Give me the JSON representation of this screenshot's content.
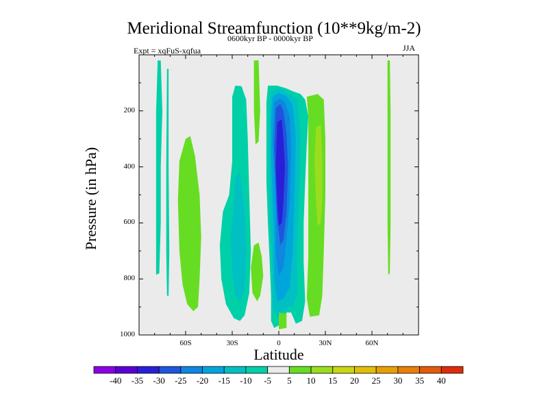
{
  "chart_data": {
    "type": "heatmap",
    "title": "Meridional Streamfunction (10**9kg/m-2)",
    "subtitle_left": "Expt = xqFuS-xqfua",
    "subtitle_center": "0600kyr BP - 0000kyr BP",
    "subtitle_right": "JJA",
    "xlabel": "Latitude",
    "ylabel": "Pressure (in hPa)",
    "xlim": [
      -90,
      90
    ],
    "ylim": [
      1000,
      0
    ],
    "x_ticks": [
      {
        "label": "60S",
        "value": -60
      },
      {
        "label": "30S",
        "value": -30
      },
      {
        "label": "0",
        "value": 0
      },
      {
        "label": "30N",
        "value": 30
      },
      {
        "label": "60N",
        "value": 60
      }
    ],
    "y_ticks": [
      {
        "label": "200",
        "value": 200
      },
      {
        "label": "400",
        "value": 400
      },
      {
        "label": "600",
        "value": 600
      },
      {
        "label": "800",
        "value": 800
      },
      {
        "label": "1000",
        "value": 1000
      }
    ],
    "colorbar": {
      "labels": [
        "-40",
        "-35",
        "-30",
        "-25",
        "-20",
        "-15",
        "-10",
        "-5",
        "5",
        "10",
        "15",
        "20",
        "25",
        "30",
        "35",
        "40"
      ],
      "colors": [
        "#8a00e6",
        "#5a00d6",
        "#2a1fd8",
        "#1f55dd",
        "#0f86e0",
        "#00a5dc",
        "#00c0c4",
        "#00d0a8",
        "#ebebeb",
        "#66dd22",
        "#9bdd1e",
        "#c8d614",
        "#e0be08",
        "#e89f06",
        "#e77e08",
        "#e35a08",
        "#dc2c0a"
      ]
    },
    "regions": [
      {
        "level": "-10",
        "color": "#00d0a8",
        "points": [
          [
            -78,
            20
          ],
          [
            -76,
            20
          ],
          [
            -75,
            200
          ],
          [
            -76,
            400
          ],
          [
            -76,
            600
          ],
          [
            -77,
            780
          ],
          [
            -79,
            785
          ],
          [
            -79,
            600
          ],
          [
            -79,
            400
          ],
          [
            -79,
            200
          ]
        ]
      },
      {
        "level": "-10",
        "color": "#00d0a8",
        "points": [
          [
            -72,
            50
          ],
          [
            -71,
            50
          ],
          [
            -71,
            400
          ],
          [
            -70.5,
            700
          ],
          [
            -71,
            860
          ],
          [
            -72,
            860
          ],
          [
            -72.5,
            700
          ],
          [
            -72.5,
            400
          ]
        ]
      },
      {
        "level": "5",
        "color": "#66dd22",
        "points": [
          [
            -60,
            300
          ],
          [
            -57,
            290
          ],
          [
            -54,
            360
          ],
          [
            -51,
            500
          ],
          [
            -50,
            650
          ],
          [
            -51,
            800
          ],
          [
            -52,
            900
          ],
          [
            -55,
            915
          ],
          [
            -59,
            890
          ],
          [
            -62,
            820
          ],
          [
            -64,
            700
          ],
          [
            -65,
            520
          ],
          [
            -64,
            380
          ]
        ]
      },
      {
        "level": "-10",
        "color": "#00d0a8",
        "points": [
          [
            -28,
            110
          ],
          [
            -24,
            112
          ],
          [
            -21,
            160
          ],
          [
            -20,
            300
          ],
          [
            -19,
            500
          ],
          [
            -18,
            700
          ],
          [
            -19,
            850
          ],
          [
            -22,
            930
          ],
          [
            -25,
            950
          ],
          [
            -29,
            940
          ],
          [
            -34,
            890
          ],
          [
            -37,
            800
          ],
          [
            -38,
            680
          ],
          [
            -36,
            560
          ],
          [
            -32,
            500
          ],
          [
            -30,
            380
          ],
          [
            -30,
            220
          ],
          [
            -30,
            150
          ]
        ]
      },
      {
        "level": "-15",
        "color": "#00c0c4",
        "points": [
          [
            -28,
            440
          ],
          [
            -25,
            420
          ],
          [
            -22,
            550
          ],
          [
            -21,
            700
          ],
          [
            -22,
            840
          ],
          [
            -25,
            880
          ],
          [
            -28,
            860
          ],
          [
            -30,
            770
          ],
          [
            -31,
            650
          ],
          [
            -29,
            540
          ]
        ]
      },
      {
        "level": "5",
        "color": "#66dd22",
        "points": [
          [
            -16,
            20
          ],
          [
            -13,
            20
          ],
          [
            -12,
            200
          ],
          [
            -13,
            310
          ],
          [
            -15,
            320
          ],
          [
            -16,
            200
          ]
        ]
      },
      {
        "level": "5",
        "color": "#66dd22",
        "points": [
          [
            -16,
            680
          ],
          [
            -13,
            670
          ],
          [
            -11,
            720
          ],
          [
            -10,
            790
          ],
          [
            -12,
            860
          ],
          [
            -14,
            880
          ],
          [
            -17,
            850
          ],
          [
            -18,
            760
          ]
        ]
      },
      {
        "level": "-10",
        "color": "#00d0a8",
        "points": [
          [
            -7,
            110
          ],
          [
            -1,
            110
          ],
          [
            5,
            120
          ],
          [
            9,
            130
          ],
          [
            14,
            140
          ],
          [
            17,
            160
          ],
          [
            19,
            220
          ],
          [
            18,
            320
          ],
          [
            17,
            450
          ],
          [
            16,
            600
          ],
          [
            16,
            740
          ],
          [
            17,
            880
          ],
          [
            15,
            950
          ],
          [
            11,
            960
          ],
          [
            8,
            920
          ],
          [
            5,
            920
          ],
          [
            2,
            960
          ],
          [
            -3,
            975
          ],
          [
            -5,
            950
          ],
          [
            -5,
            860
          ],
          [
            -6,
            720
          ],
          [
            -7,
            600
          ],
          [
            -8,
            450
          ],
          [
            -8,
            260
          ],
          [
            -8,
            170
          ]
        ]
      },
      {
        "level": "5",
        "color": "#66dd22",
        "points": [
          [
            18,
            150
          ],
          [
            25,
            140
          ],
          [
            29,
            160
          ],
          [
            30,
            300
          ],
          [
            30,
            500
          ],
          [
            29,
            700
          ],
          [
            28,
            860
          ],
          [
            26,
            930
          ],
          [
            20,
            935
          ],
          [
            18,
            870
          ],
          [
            19,
            720
          ],
          [
            19,
            540
          ],
          [
            19,
            360
          ],
          [
            19,
            220
          ]
        ]
      },
      {
        "level": "10",
        "color": "#9bdd1e",
        "points": [
          [
            24,
            260
          ],
          [
            27,
            250
          ],
          [
            28,
            370
          ],
          [
            28,
            520
          ],
          [
            27,
            600
          ],
          [
            25,
            610
          ],
          [
            24,
            520
          ],
          [
            23,
            380
          ]
        ]
      },
      {
        "level": "-15",
        "color": "#00c0c4",
        "points": [
          [
            -5,
            130
          ],
          [
            1,
            120
          ],
          [
            6,
            135
          ],
          [
            12,
            160
          ],
          [
            14,
            300
          ],
          [
            13,
            500
          ],
          [
            12,
            700
          ],
          [
            12,
            850
          ],
          [
            9,
            900
          ],
          [
            3,
            910
          ],
          [
            -1,
            940
          ],
          [
            -4,
            900
          ],
          [
            -4,
            780
          ],
          [
            -5,
            640
          ],
          [
            -6,
            500
          ],
          [
            -6,
            300
          ],
          [
            -6,
            190
          ]
        ]
      },
      {
        "level": "-20",
        "color": "#00a5dc",
        "points": [
          [
            -4,
            150
          ],
          [
            0,
            135
          ],
          [
            5,
            148
          ],
          [
            9,
            180
          ],
          [
            11,
            300
          ],
          [
            10,
            520
          ],
          [
            9,
            700
          ],
          [
            7,
            830
          ],
          [
            3,
            870
          ],
          [
            -1,
            880
          ],
          [
            -3,
            800
          ],
          [
            -3,
            660
          ],
          [
            -4,
            520
          ],
          [
            -5,
            360
          ],
          [
            -5,
            230
          ]
        ]
      },
      {
        "level": "-25",
        "color": "#0f86e0",
        "points": [
          [
            -3,
            170
          ],
          [
            1,
            155
          ],
          [
            4,
            170
          ],
          [
            7,
            220
          ],
          [
            8,
            350
          ],
          [
            7,
            520
          ],
          [
            5,
            660
          ],
          [
            3,
            760
          ],
          [
            0,
            790
          ],
          [
            -2,
            700
          ],
          [
            -2,
            560
          ],
          [
            -3,
            420
          ],
          [
            -4,
            300
          ]
        ]
      },
      {
        "level": "-30",
        "color": "#1f55dd",
        "points": [
          [
            -2,
            190
          ],
          [
            1,
            175
          ],
          [
            3,
            200
          ],
          [
            5,
            280
          ],
          [
            6,
            400
          ],
          [
            5,
            560
          ],
          [
            3,
            660
          ],
          [
            1,
            680
          ],
          [
            -1,
            590
          ],
          [
            -2,
            460
          ],
          [
            -3,
            330
          ]
        ]
      },
      {
        "level": "-35",
        "color": "#2a1fd8",
        "points": [
          [
            -1,
            240
          ],
          [
            2,
            230
          ],
          [
            3,
            300
          ],
          [
            4,
            400
          ],
          [
            3,
            520
          ],
          [
            2,
            600
          ],
          [
            0,
            610
          ],
          [
            -1,
            530
          ],
          [
            -2,
            400
          ]
        ]
      },
      {
        "level": "5",
        "color": "#66dd22",
        "points": [
          [
            0,
            920
          ],
          [
            5,
            925
          ],
          [
            5,
            975
          ],
          [
            0,
            980
          ]
        ]
      },
      {
        "level": "5",
        "color": "#66dd22",
        "points": [
          [
            70,
            20
          ],
          [
            71.5,
            20
          ],
          [
            72,
            200
          ],
          [
            72,
            400
          ],
          [
            72,
            600
          ],
          [
            71.5,
            780
          ],
          [
            70.5,
            785
          ],
          [
            70,
            600
          ],
          [
            70,
            400
          ],
          [
            70,
            200
          ]
        ]
      }
    ]
  }
}
